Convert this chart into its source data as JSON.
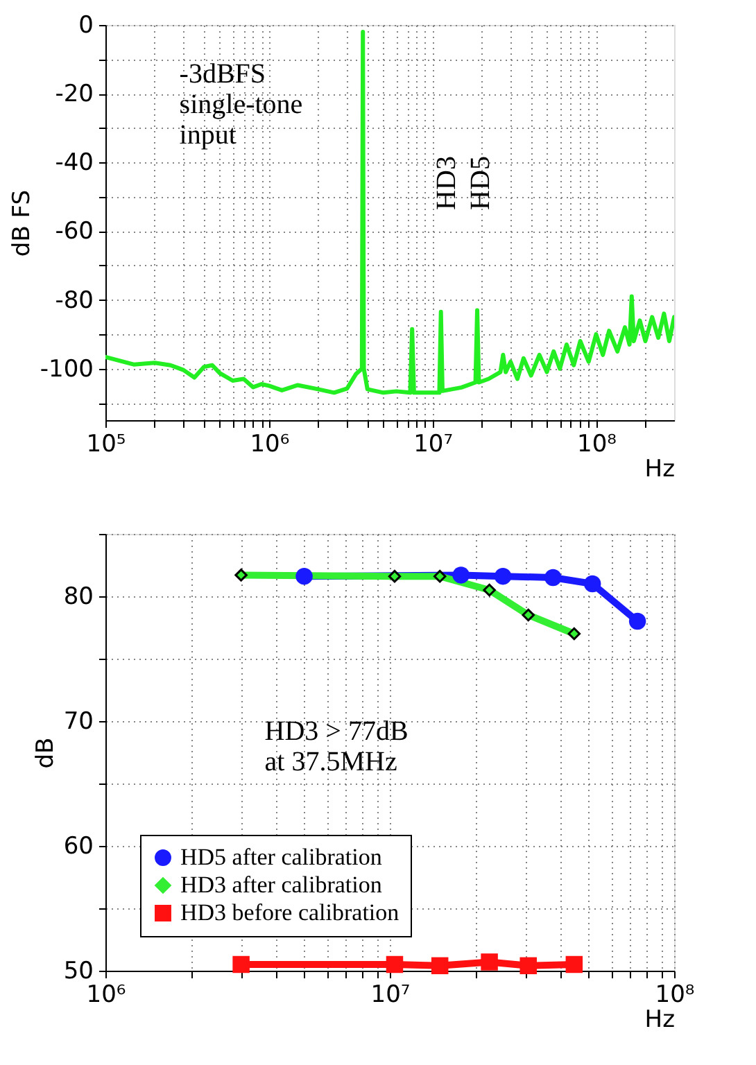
{
  "chart_data": [
    {
      "type": "line",
      "ylabel": "dB FS",
      "xlabel": "Hz",
      "log": "x",
      "grid": true,
      "legend": false,
      "marker": "none",
      "xlim": [
        100000,
        300000000
      ],
      "ylim": [
        -115,
        0
      ],
      "xticks": [
        {
          "value": 100000,
          "label": "10⁵"
        },
        {
          "value": 200000,
          "label": null
        },
        {
          "value": 300000,
          "label": null
        },
        {
          "value": 400000,
          "label": null
        },
        {
          "value": 500000,
          "label": null
        },
        {
          "value": 600000,
          "label": null
        },
        {
          "value": 700000,
          "label": null
        },
        {
          "value": 800000,
          "label": null
        },
        {
          "value": 900000,
          "label": null
        },
        {
          "value": 1000000,
          "label": "10⁶"
        },
        {
          "value": 2000000,
          "label": null
        },
        {
          "value": 3000000,
          "label": null
        },
        {
          "value": 4000000,
          "label": null
        },
        {
          "value": 5000000,
          "label": null
        },
        {
          "value": 6000000,
          "label": null
        },
        {
          "value": 7000000,
          "label": null
        },
        {
          "value": 8000000,
          "label": null
        },
        {
          "value": 9000000,
          "label": null
        },
        {
          "value": 10000000,
          "label": "10⁷"
        },
        {
          "value": 20000000,
          "label": null
        },
        {
          "value": 30000000,
          "label": null
        },
        {
          "value": 40000000,
          "label": null
        },
        {
          "value": 50000000,
          "label": null
        },
        {
          "value": 60000000,
          "label": null
        },
        {
          "value": 70000000,
          "label": null
        },
        {
          "value": 80000000,
          "label": null
        },
        {
          "value": 90000000,
          "label": null
        },
        {
          "value": 100000000,
          "label": "10⁸"
        },
        {
          "value": 200000000,
          "label": null
        }
      ],
      "yticks": [
        {
          "value": -110,
          "label": null
        },
        -100,
        {
          "value": -90,
          "label": null
        },
        -80,
        {
          "value": -70,
          "label": null
        },
        -60,
        {
          "value": -50,
          "label": null
        },
        -40,
        {
          "value": -30,
          "label": null
        },
        -20,
        {
          "value": -10,
          "label": null
        },
        0
      ],
      "annotations": [
        "-3dBFS\nsingle-tone\ninput",
        "HD3",
        "HD5"
      ],
      "series": [
        {
          "color": "#22ee22",
          "x": [
            100000,
            149000,
            200000,
            250000,
            300000,
            350000,
            400000,
            450000,
            500000,
            600000,
            700000,
            800000,
            900000,
            1000000,
            1200000,
            1500000,
            2000000,
            2500000,
            3000000,
            3400000,
            3700000,
            3750000,
            3800000,
            4000000,
            5000000,
            6000000,
            7300000,
            7500000,
            7700000,
            10000000,
            11000000,
            11250000,
            11500000,
            15000000,
            18300000,
            18750000,
            19200000,
            22000000,
            26000000,
            27000000,
            28000000,
            30000000,
            33000000,
            36000000,
            40000000,
            45000000,
            50000000,
            55000000,
            60000000,
            66000000,
            73000000,
            80000000,
            90000000,
            100000000,
            110000000,
            120000000,
            135000000,
            150000000,
            160000000,
            165000000,
            170000000,
            185000000,
            200000000,
            220000000,
            240000000,
            260000000,
            280000000,
            300000000
          ],
          "values": [
            -96.6,
            -98.8,
            -98.3,
            -99,
            -100.4,
            -102.6,
            -99.5,
            -99,
            -101.3,
            -103.5,
            -103,
            -105.4,
            -104.5,
            -105,
            -106.3,
            -104.8,
            -106,
            -107,
            -105.8,
            -101.6,
            -100,
            -2,
            -100,
            -106,
            -107,
            -106.6,
            -107,
            -88.5,
            -107,
            -107,
            -107,
            -83.5,
            -106.5,
            -105.5,
            -104,
            -83,
            -104,
            -103,
            -101,
            -96,
            -101,
            -98,
            -103,
            -97,
            -102,
            -96,
            -101,
            -95,
            -100,
            -93,
            -99,
            -92,
            -98,
            -90,
            -96,
            -89,
            -95,
            -88,
            -93,
            -79,
            -92,
            -86,
            -92,
            -85,
            -91,
            -84,
            -92,
            -85
          ]
        }
      ]
    },
    {
      "type": "line",
      "ylabel": "dB",
      "xlabel": "Hz",
      "log": "x",
      "grid": true,
      "legend": "bottom left",
      "xlim": [
        1000000,
        100000000
      ],
      "ylim": [
        50,
        85
      ],
      "xticks": [
        {
          "value": 1000000,
          "label": "10⁶"
        },
        {
          "value": 2000000,
          "label": null
        },
        {
          "value": 3000000,
          "label": null
        },
        {
          "value": 4000000,
          "label": null
        },
        {
          "value": 5000000,
          "label": null
        },
        {
          "value": 6000000,
          "label": null
        },
        {
          "value": 7000000,
          "label": null
        },
        {
          "value": 8000000,
          "label": null
        },
        {
          "value": 9000000,
          "label": null
        },
        {
          "value": 10000000,
          "label": "10⁷"
        },
        {
          "value": 20000000,
          "label": null
        },
        {
          "value": 30000000,
          "label": null
        },
        {
          "value": 40000000,
          "label": null
        },
        {
          "value": 50000000,
          "label": null
        },
        {
          "value": 60000000,
          "label": null
        },
        {
          "value": 70000000,
          "label": null
        },
        {
          "value": 80000000,
          "label": null
        },
        {
          "value": 90000000,
          "label": null
        },
        {
          "value": 100000000,
          "label": "10⁸"
        }
      ],
      "yticks": [
        50,
        {
          "value": 55,
          "label": null
        },
        60,
        {
          "value": 65,
          "label": null
        },
        70,
        {
          "value": 75,
          "label": null
        },
        80,
        {
          "value": 85,
          "label": null
        }
      ],
      "annotations": [
        "HD3 > 77dB\nat 37.5MHz"
      ],
      "series": [
        {
          "name": "HD5 after calibration",
          "color": "#1a1aff",
          "marker": "circle",
          "x": [
            5000000,
            17800000,
            25000000,
            37500000,
            51600000,
            74300000
          ],
          "values": [
            81.6,
            81.7,
            81.6,
            81.5,
            81.0,
            78.0
          ]
        },
        {
          "name": "HD3 after calibration",
          "color": "#33ee33",
          "marker": "diamond",
          "x": [
            3000000,
            10400000,
            15000000,
            22400000,
            30700000,
            44500000
          ],
          "values": [
            81.7,
            81.6,
            81.6,
            80.5,
            78.5,
            77.0
          ]
        },
        {
          "name": "HD3 before calibration",
          "color": "#ff1111",
          "marker": "square",
          "x": [
            3000000,
            10400000,
            15000000,
            22400000,
            30700000,
            44500000
          ],
          "values": [
            50.5,
            50.5,
            50.4,
            50.7,
            50.4,
            50.5
          ]
        }
      ]
    }
  ]
}
